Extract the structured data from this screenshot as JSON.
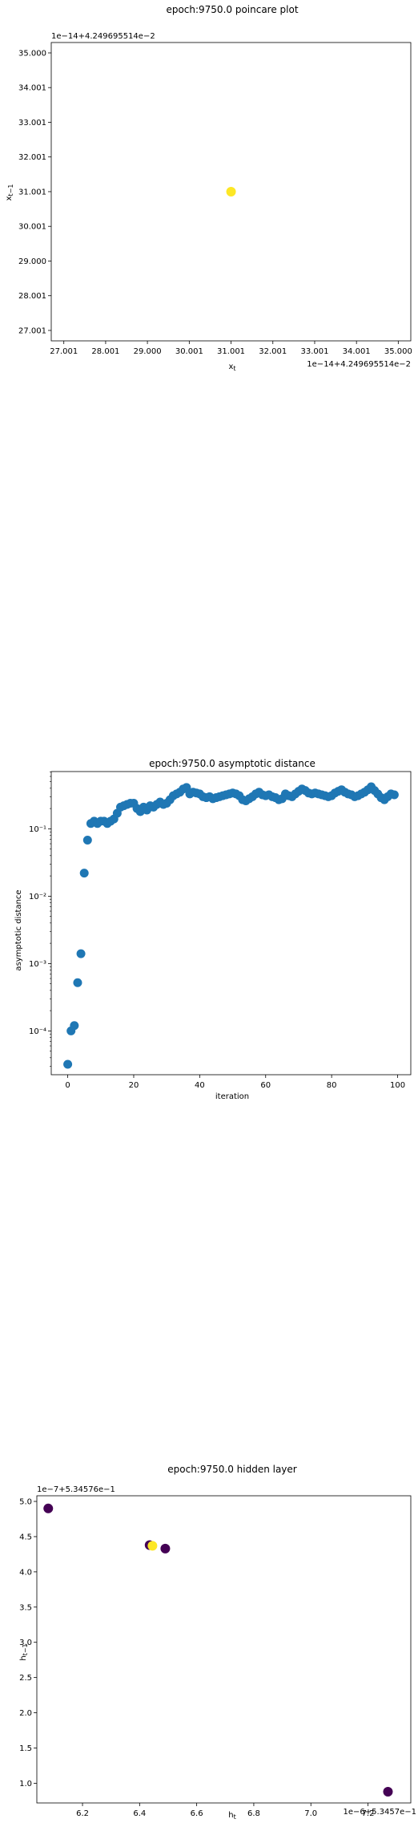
{
  "chart_data": [
    {
      "type": "scatter",
      "title": "epoch:9750.0 poincare plot",
      "xlabel": "x_t",
      "ylabel": "x_{t-1}",
      "x_offset_label": "1e−14+4.249695514e−2",
      "y_offset_label": "1e−14+4.249695514e−2",
      "xlim": [
        26.7,
        35.3
      ],
      "ylim": [
        26.7,
        35.3
      ],
      "xticks": [
        27.001,
        28.001,
        29.0,
        30.001,
        31.001,
        32.001,
        33.001,
        34.001,
        35.0
      ],
      "xtick_labels": [
        "27.001",
        "28.001",
        "29.000",
        "30.001",
        "31.001",
        "32.001",
        "33.001",
        "34.001",
        "35.000"
      ],
      "yticks": [
        27.001,
        28.001,
        29.0,
        30.001,
        31.001,
        32.001,
        33.001,
        34.001,
        35.0
      ],
      "ytick_labels": [
        "27.001",
        "28.001",
        "29.000",
        "30.001",
        "31.001",
        "32.001",
        "33.001",
        "34.001",
        "35.000"
      ],
      "points": [
        {
          "x": 31.001,
          "y": 31.001,
          "color": "#fde725"
        }
      ]
    },
    {
      "type": "scatter",
      "title": "epoch:9750.0 asymptotic distance",
      "xlabel": "iteration",
      "ylabel": "asymptotic distance",
      "yscale": "log",
      "xlim": [
        -5,
        104
      ],
      "ylim_log10": [
        -4.65,
        -0.15
      ],
      "xticks": [
        0,
        20,
        40,
        60,
        80,
        100
      ],
      "xtick_labels": [
        "0",
        "20",
        "40",
        "60",
        "80",
        "100"
      ],
      "yticks_log10": [
        -4,
        -3,
        -2,
        -1
      ],
      "ytick_labels": [
        "10⁻⁴",
        "10⁻³",
        "10⁻²",
        "10⁻¹"
      ],
      "color": "#1f77b4",
      "x": [
        0,
        1,
        2,
        3,
        4,
        5,
        6,
        7,
        8,
        9,
        10,
        11,
        12,
        13,
        14,
        15,
        16,
        17,
        18,
        19,
        20,
        21,
        22,
        23,
        24,
        25,
        26,
        27,
        28,
        29,
        30,
        31,
        32,
        33,
        34,
        35,
        36,
        37,
        38,
        39,
        40,
        41,
        42,
        43,
        44,
        45,
        46,
        47,
        48,
        49,
        50,
        51,
        52,
        53,
        54,
        55,
        56,
        57,
        58,
        59,
        60,
        61,
        62,
        63,
        64,
        65,
        66,
        67,
        68,
        69,
        70,
        71,
        72,
        73,
        74,
        75,
        76,
        77,
        78,
        79,
        80,
        81,
        82,
        83,
        84,
        85,
        86,
        87,
        88,
        89,
        90,
        91,
        92,
        93,
        94,
        95,
        96,
        97,
        98,
        99
      ],
      "y": [
        3.2e-05,
        0.0001,
        0.00012,
        0.00052,
        0.0014,
        0.022,
        0.068,
        0.12,
        0.13,
        0.12,
        0.13,
        0.13,
        0.12,
        0.13,
        0.14,
        0.17,
        0.21,
        0.22,
        0.23,
        0.24,
        0.24,
        0.2,
        0.18,
        0.21,
        0.19,
        0.22,
        0.21,
        0.23,
        0.25,
        0.23,
        0.24,
        0.27,
        0.31,
        0.33,
        0.35,
        0.39,
        0.41,
        0.33,
        0.35,
        0.34,
        0.33,
        0.3,
        0.29,
        0.3,
        0.28,
        0.29,
        0.3,
        0.31,
        0.32,
        0.33,
        0.34,
        0.33,
        0.31,
        0.27,
        0.26,
        0.28,
        0.3,
        0.33,
        0.35,
        0.32,
        0.31,
        0.32,
        0.3,
        0.29,
        0.27,
        0.28,
        0.33,
        0.31,
        0.3,
        0.33,
        0.36,
        0.39,
        0.37,
        0.34,
        0.33,
        0.34,
        0.33,
        0.32,
        0.31,
        0.3,
        0.31,
        0.34,
        0.36,
        0.38,
        0.35,
        0.33,
        0.32,
        0.3,
        0.31,
        0.33,
        0.35,
        0.38,
        0.42,
        0.37,
        0.33,
        0.29,
        0.27,
        0.3,
        0.33,
        0.32
      ]
    },
    {
      "type": "scatter",
      "title": "epoch:9750.0 hidden layer",
      "xlabel": "h_t",
      "ylabel": "h_{t-1}",
      "x_offset_label": "1e−6+5.3457e−1",
      "y_offset_label": "1e−7+5.34576e−1",
      "xlim": [
        6.04,
        7.35
      ],
      "ylim": [
        0.72,
        5.08
      ],
      "xticks": [
        6.2,
        6.4,
        6.6,
        6.8,
        7.0,
        7.2
      ],
      "xtick_labels": [
        "6.2",
        "6.4",
        "6.6",
        "6.8",
        "7.0",
        "7.2"
      ],
      "yticks": [
        1.0,
        1.5,
        2.0,
        2.5,
        3.0,
        3.5,
        4.0,
        4.5,
        5.0
      ],
      "ytick_labels": [
        "1.0",
        "1.5",
        "2.0",
        "2.5",
        "3.0",
        "3.5",
        "4.0",
        "4.5",
        "5.0"
      ],
      "points": [
        {
          "x": 6.08,
          "y": 4.9,
          "color": "#440154"
        },
        {
          "x": 6.435,
          "y": 4.38,
          "color": "#440154"
        },
        {
          "x": 6.49,
          "y": 4.33,
          "color": "#440154"
        },
        {
          "x": 7.27,
          "y": 0.88,
          "color": "#440154"
        },
        {
          "x": 6.445,
          "y": 4.37,
          "color": "#fde725"
        }
      ]
    }
  ]
}
